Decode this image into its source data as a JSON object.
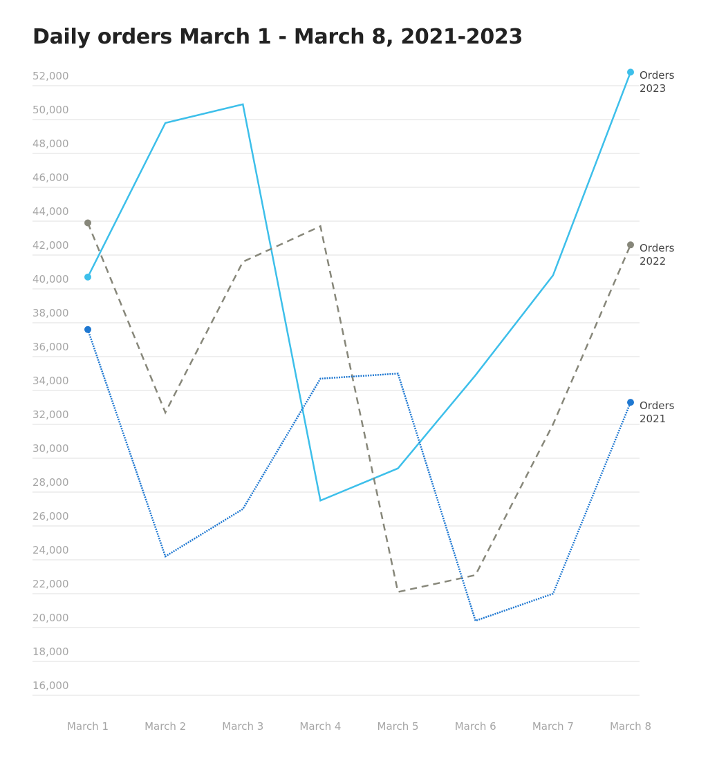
{
  "chart_data": {
    "type": "line",
    "title": "Daily orders March 1 - March 8, 2021-2023",
    "categories": [
      "March 1",
      "March 2",
      "March 3",
      "March 4",
      "March 5",
      "March 6",
      "March 7",
      "March 8"
    ],
    "series": [
      {
        "name": "Orders 2023",
        "color": "#3dbfea",
        "dash": "solid",
        "values": [
          40700,
          49800,
          50900,
          27500,
          29400,
          34900,
          40800,
          52800
        ]
      },
      {
        "name": "Orders 2022",
        "color": "#87877a",
        "dash": "dashed",
        "values": [
          43900,
          32700,
          41600,
          43700,
          22100,
          23100,
          32000,
          42600
        ]
      },
      {
        "name": "Orders 2021",
        "color": "#1f78d1",
        "dash": "dotted",
        "values": [
          37600,
          24200,
          27000,
          34700,
          35000,
          20400,
          22000,
          33300
        ]
      }
    ],
    "ylim": [
      16000,
      52000
    ],
    "yticks": [
      {
        "value": 16000,
        "label": "16,000"
      },
      {
        "value": 18000,
        "label": "18,000"
      },
      {
        "value": 20000,
        "label": "20,000"
      },
      {
        "value": 22000,
        "label": "22,000"
      },
      {
        "value": 24000,
        "label": "24,000"
      },
      {
        "value": 26000,
        "label": "26,000"
      },
      {
        "value": 28000,
        "label": "28,000"
      },
      {
        "value": 30000,
        "label": "30,000"
      },
      {
        "value": 32000,
        "label": "32,000"
      },
      {
        "value": 34000,
        "label": "34,000"
      },
      {
        "value": 36000,
        "label": "36,000"
      },
      {
        "value": 38000,
        "label": "38,000"
      },
      {
        "value": 40000,
        "label": "40,000"
      },
      {
        "value": 42000,
        "label": "42,000"
      },
      {
        "value": 44000,
        "label": "44,000"
      },
      {
        "value": 46000,
        "label": "46,000"
      },
      {
        "value": 48000,
        "label": "48,000"
      },
      {
        "value": 50000,
        "label": "50,000"
      },
      {
        "value": 52000,
        "label": "52,000"
      }
    ],
    "grid": true
  }
}
